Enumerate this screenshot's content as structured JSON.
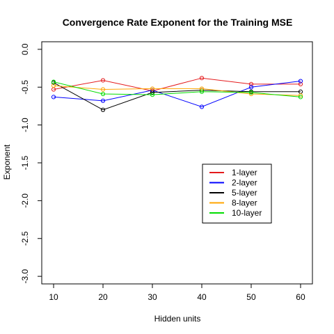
{
  "chart_data": {
    "type": "line",
    "title": "Convergence Rate Exponent for the Training MSE",
    "xlabel": "Hidden units",
    "ylabel": "Exponent",
    "x": [
      10,
      20,
      30,
      40,
      50,
      60
    ],
    "xticks": [
      "10",
      "20",
      "30",
      "40",
      "50",
      "60"
    ],
    "xlim": [
      7.6,
      62.4
    ],
    "ylim": [
      -3.1,
      0.1
    ],
    "yticks": [
      0.0,
      -0.5,
      -1.0,
      -1.5,
      -2.0,
      -2.5,
      -3.0
    ],
    "ytick_labels": [
      "0.0",
      "-0.5",
      "-1.0",
      "-1.5",
      "-2.0",
      "-2.5",
      "-3.0"
    ],
    "grid": false,
    "legend_position": "center-right",
    "markers": "open-circle",
    "series": [
      {
        "name": "1-layer",
        "color": "#e41a1c",
        "values": [
          -0.53,
          -0.41,
          -0.55,
          -0.38,
          -0.46,
          -0.46
        ]
      },
      {
        "name": "2-layer",
        "color": "#0000ff",
        "values": [
          -0.63,
          -0.68,
          -0.54,
          -0.76,
          -0.5,
          -0.42
        ]
      },
      {
        "name": "5-layer",
        "color": "#000000",
        "values": [
          -0.44,
          -0.8,
          -0.57,
          -0.54,
          -0.56,
          -0.56
        ]
      },
      {
        "name": "8-layer",
        "color": "#ffa500",
        "values": [
          -0.48,
          -0.53,
          -0.52,
          -0.52,
          -0.59,
          -0.61
        ]
      },
      {
        "name": "10-layer",
        "color": "#00dd00",
        "values": [
          -0.43,
          -0.59,
          -0.6,
          -0.56,
          -0.57,
          -0.63
        ]
      }
    ]
  }
}
